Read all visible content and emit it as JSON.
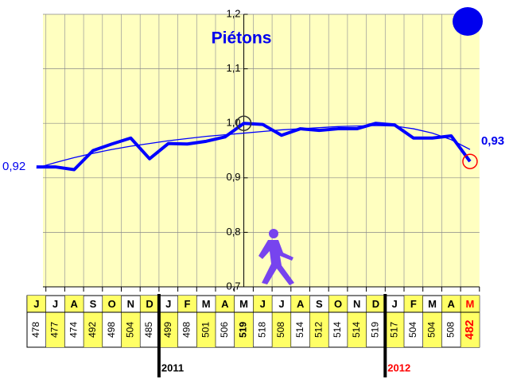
{
  "chart_data": {
    "type": "line",
    "title": "Piétons",
    "categories": [
      "J",
      "J",
      "A",
      "S",
      "O",
      "N",
      "D",
      "J",
      "F",
      "M",
      "A",
      "M",
      "J",
      "J",
      "A",
      "S",
      "O",
      "N",
      "D",
      "J",
      "F",
      "M",
      "A",
      "M"
    ],
    "counts": [
      478,
      477,
      474,
      492,
      498,
      504,
      485,
      499,
      498,
      501,
      506,
      519,
      518,
      508,
      514,
      512,
      514,
      514,
      519,
      517,
      504,
      504,
      508,
      482
    ],
    "years": [
      {
        "label": "2011",
        "start": 7
      },
      {
        "label": "2012",
        "start": 19
      }
    ],
    "series": [
      {
        "color": "#0000ff",
        "values": [
          0.92,
          0.92,
          0.915,
          0.95,
          0.962,
          0.973,
          0.935,
          0.963,
          0.962,
          0.967,
          0.975,
          1.0,
          0.998,
          0.978,
          0.99,
          0.987,
          0.99,
          0.99,
          1.0,
          0.997,
          0.973,
          0.973,
          0.977,
          0.93
        ],
        "value_labels": [
          "0,92",
          null,
          null,
          null,
          null,
          null,
          null,
          null,
          null,
          null,
          null,
          null,
          null,
          null,
          null,
          null,
          null,
          null,
          null,
          null,
          null,
          null,
          null,
          "0,93"
        ]
      },
      {
        "color": "#0000ff",
        "values": [
          0.918,
          0.928,
          0.937,
          0.945,
          0.952,
          0.958,
          0.963,
          0.968,
          0.972,
          0.976,
          0.979,
          0.982,
          0.985,
          0.988,
          0.99,
          0.992,
          0.994,
          0.995,
          0.996,
          0.995,
          0.99,
          0.982,
          0.97,
          0.952
        ]
      }
    ],
    "ylim": [
      0.7,
      1.2
    ],
    "yticks": [
      {
        "value": 0.7,
        "label": "0,7"
      },
      {
        "value": 0.8,
        "label": "0,8"
      },
      {
        "value": 0.9,
        "label": "0,9"
      },
      {
        "value": 1.0,
        "label": "1,0"
      },
      {
        "value": 1.1,
        "label": "1,1"
      },
      {
        "value": 1.2,
        "label": "1,2"
      }
    ],
    "grid": true,
    "background": "#ffffc0",
    "highlight": "#ffff66",
    "last_color": "#ff0000"
  }
}
